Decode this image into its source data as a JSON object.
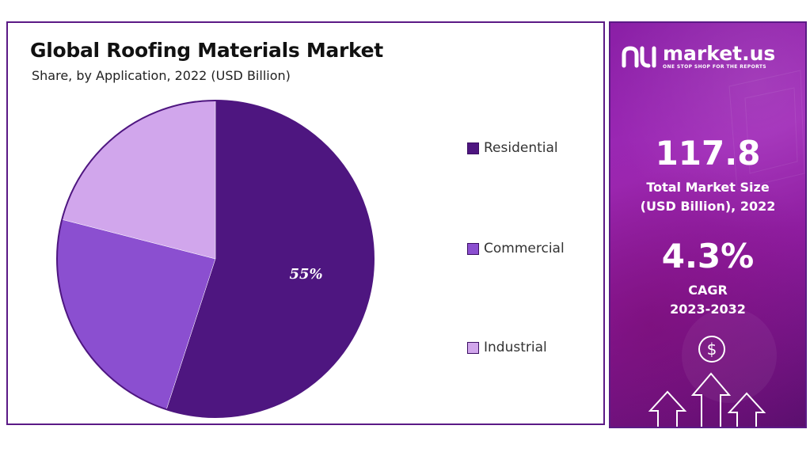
{
  "chart": {
    "title": "Global Roofing Materials Market",
    "subtitle": "Share, by Application, 2022 (USD Billion)"
  },
  "chart_data": {
    "type": "pie",
    "title": "Global Roofing Materials Market",
    "subtitle": "Share, by Application, 2022 (USD Billion)",
    "categories": [
      "Residential",
      "Commercial",
      "Industrial"
    ],
    "values": [
      55,
      24,
      21
    ],
    "unit": "%",
    "data_labels": [
      "55%",
      "",
      ""
    ],
    "colors": [
      "#4e1680",
      "#8b4fd0",
      "#d1a6ec"
    ],
    "legend_position": "right"
  },
  "info": {
    "brand_name": "market.us",
    "brand_tagline": "ONE STOP SHOP FOR THE REPORTS",
    "market_size_value": "117.8",
    "market_size_label_1": "Total Market Size",
    "market_size_label_2": "(USD Billion), 2022",
    "cagr_value": "4.3%",
    "cagr_label": "CAGR",
    "cagr_period": "2023-2032",
    "dollar_symbol": "$"
  },
  "icons": [
    "market-us-logo-icon",
    "dollar-icon",
    "arrow-up-icon"
  ]
}
